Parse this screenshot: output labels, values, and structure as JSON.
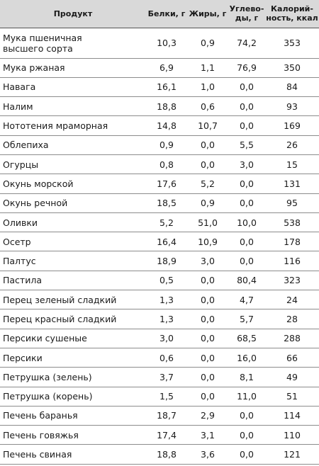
{
  "table": {
    "headers": {
      "product": "Продукт",
      "protein": "Белки, г",
      "fat": "Жиры, г",
      "carbs_line1": "Углево-",
      "carbs_line2": "ды, г",
      "cal_line1": "Калорий-",
      "cal_line2": "ность, ккал"
    },
    "rows": [
      {
        "name": "Мука пшеничная высшего сорта",
        "protein": "10,3",
        "fat": "0,9",
        "carbs": "74,2",
        "cal": "353"
      },
      {
        "name": "Мука ржаная",
        "protein": "6,9",
        "fat": "1,1",
        "carbs": "76,9",
        "cal": "350"
      },
      {
        "name": "Навага",
        "protein": "16,1",
        "fat": "1,0",
        "carbs": "0,0",
        "cal": "84"
      },
      {
        "name": "Налим",
        "protein": "18,8",
        "fat": "0,6",
        "carbs": "0,0",
        "cal": "93"
      },
      {
        "name": "Нототения мраморная",
        "protein": "14,8",
        "fat": "10,7",
        "carbs": "0,0",
        "cal": "169"
      },
      {
        "name": "Облепиха",
        "protein": "0,9",
        "fat": "0,0",
        "carbs": "5,5",
        "cal": "26"
      },
      {
        "name": "Огурцы",
        "protein": "0,8",
        "fat": "0,0",
        "carbs": "3,0",
        "cal": "15"
      },
      {
        "name": "Окунь морской",
        "protein": "17,6",
        "fat": "5,2",
        "carbs": "0,0",
        "cal": "131"
      },
      {
        "name": "Окунь речной",
        "protein": "18,5",
        "fat": "0,9",
        "carbs": "0,0",
        "cal": "95"
      },
      {
        "name": "Оливки",
        "protein": "5,2",
        "fat": "51,0",
        "carbs": "10,0",
        "cal": "538"
      },
      {
        "name": "Осетр",
        "protein": "16,4",
        "fat": "10,9",
        "carbs": "0,0",
        "cal": "178"
      },
      {
        "name": "Палтус",
        "protein": "18,9",
        "fat": "3,0",
        "carbs": "0,0",
        "cal": "116"
      },
      {
        "name": "Пастила",
        "protein": "0,5",
        "fat": "0,0",
        "carbs": "80,4",
        "cal": "323"
      },
      {
        "name": "Перец зеленый сладкий",
        "protein": "1,3",
        "fat": "0,0",
        "carbs": "4,7",
        "cal": "24"
      },
      {
        "name": "Перец красный сладкий",
        "protein": "1,3",
        "fat": "0,0",
        "carbs": "5,7",
        "cal": "28"
      },
      {
        "name": "Персики сушеные",
        "protein": "3,0",
        "fat": "0,0",
        "carbs": "68,5",
        "cal": "288"
      },
      {
        "name": "Персики",
        "protein": "0,6",
        "fat": "0,0",
        "carbs": "16,0",
        "cal": "66"
      },
      {
        "name": "Петрушка (зелень)",
        "protein": "3,7",
        "fat": "0,0",
        "carbs": "8,1",
        "cal": "49"
      },
      {
        "name": "Петрушка (корень)",
        "protein": "1,5",
        "fat": "0,0",
        "carbs": "11,0",
        "cal": "51"
      },
      {
        "name": "Печень баранья",
        "protein": "18,7",
        "fat": "2,9",
        "carbs": "0,0",
        "cal": "114"
      },
      {
        "name": "Печень говяжья",
        "protein": "17,4",
        "fat": "3,1",
        "carbs": "0,0",
        "cal": "110"
      },
      {
        "name": "Печень свиная",
        "protein": "18,8",
        "fat": "3,6",
        "carbs": "0,0",
        "cal": "121"
      }
    ]
  }
}
